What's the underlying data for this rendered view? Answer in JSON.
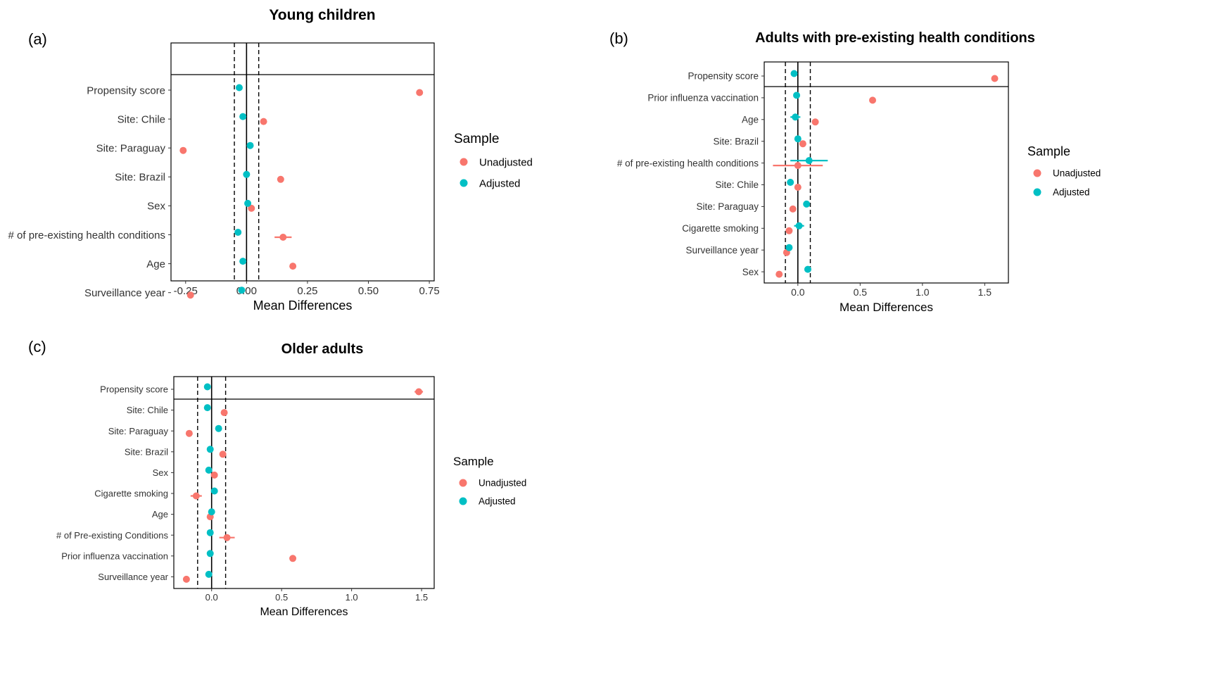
{
  "colors": {
    "unadjusted": "#F8766D",
    "adjusted": "#00BFC4",
    "axis": "#000000",
    "text": "#333333"
  },
  "legend_title": "Sample",
  "legend_labels": {
    "unadjusted": "Unadjusted",
    "adjusted": "Adjusted"
  },
  "chart_data": [
    {
      "type": "scatter",
      "panel_label": "(a)",
      "title": "Young children",
      "xlabel": "Mean Differences",
      "ylabel": "",
      "xlim": [
        -0.31,
        0.77
      ],
      "xticks": [
        -0.25,
        0.0,
        0.25,
        0.5,
        0.75
      ],
      "xtick_labels": [
        "-0.25",
        "0.00",
        "0.25",
        "0.50",
        "0.75"
      ],
      "reference_lines": {
        "solid": 0,
        "dashed": [
          -0.05,
          0.05
        ]
      },
      "legend_placement": "right",
      "categories": [
        "Propensity score",
        "Site: Chile",
        "Site: Paraguay",
        "Site: Brazil",
        "Sex",
        "# of pre-existing health conditions",
        "Age",
        "Surveillance year"
      ],
      "series": [
        {
          "name": "Unadjusted",
          "values": [
            0.71,
            0.07,
            -0.26,
            0.14,
            0.02,
            0.15,
            0.19,
            -0.23
          ],
          "errors": [
            0,
            0,
            0,
            0,
            0,
            0.035,
            0,
            0
          ]
        },
        {
          "name": "Adjusted",
          "values": [
            -0.03,
            -0.015,
            0.015,
            0.0,
            0.005,
            -0.035,
            -0.015,
            -0.02
          ],
          "errors": [
            0,
            0,
            0,
            0,
            0,
            0,
            0,
            0
          ]
        }
      ]
    },
    {
      "type": "scatter",
      "panel_label": "(b)",
      "title": "Adults with pre-existing health conditions",
      "xlabel": "Mean Differences",
      "ylabel": "",
      "xlim": [
        -0.27,
        1.69
      ],
      "xticks": [
        0.0,
        0.5,
        1.0,
        1.5
      ],
      "xtick_labels": [
        "0.0",
        "0.5",
        "1.0",
        "1.5"
      ],
      "reference_lines": {
        "solid": 0,
        "dashed": [
          -0.1,
          0.1
        ]
      },
      "legend_placement": "right",
      "categories": [
        "Propensity score",
        "Prior influenza vaccination",
        "Age",
        "Site: Brazil",
        "# of pre-existing health conditions",
        "Site: Chile",
        "Site: Paraguay",
        "Cigarette smoking",
        "Surveillance year",
        "Sex"
      ],
      "series": [
        {
          "name": "Unadjusted",
          "values": [
            1.58,
            0.6,
            0.14,
            0.04,
            0.0,
            0.0,
            -0.04,
            -0.07,
            -0.09,
            -0.15
          ],
          "errors": [
            0,
            0,
            0,
            0,
            0.2,
            0,
            0,
            0,
            0,
            0
          ]
        },
        {
          "name": "Adjusted",
          "values": [
            -0.03,
            -0.01,
            -0.02,
            0.0,
            0.09,
            -0.06,
            0.07,
            0.01,
            -0.07,
            0.08
          ],
          "errors": [
            0,
            0,
            0.04,
            0,
            0.15,
            0,
            0,
            0.04,
            0,
            0
          ]
        }
      ]
    },
    {
      "type": "scatter",
      "panel_label": "(c)",
      "title": "Older adults",
      "xlabel": "Mean Differences",
      "ylabel": "",
      "xlim": [
        -0.27,
        1.59
      ],
      "xticks": [
        0.0,
        0.5,
        1.0,
        1.5
      ],
      "xtick_labels": [
        "0.0",
        "0.5",
        "1.0",
        "1.5"
      ],
      "reference_lines": {
        "solid": 0,
        "dashed": [
          -0.1,
          0.1
        ]
      },
      "legend_placement": "right",
      "categories": [
        "Propensity score",
        "Site: Chile",
        "Site: Paraguay",
        "Site: Brazil",
        "Sex",
        "Cigarette smoking",
        "Age",
        "# of Pre-existing Conditions",
        "Prior influenza vaccination",
        "Surveillance year"
      ],
      "series": [
        {
          "name": "Unadjusted",
          "values": [
            1.48,
            0.09,
            -0.16,
            0.08,
            0.02,
            -0.11,
            -0.01,
            0.11,
            0.58,
            -0.18
          ],
          "errors": [
            0.03,
            0,
            0,
            0,
            0,
            0.04,
            0,
            0.055,
            0,
            0
          ]
        },
        {
          "name": "Adjusted",
          "values": [
            -0.03,
            -0.03,
            0.05,
            -0.01,
            -0.02,
            0.02,
            0.0,
            -0.01,
            -0.01,
            -0.02
          ],
          "errors": [
            0,
            0,
            0,
            0,
            0,
            0,
            0,
            0,
            0,
            0
          ]
        }
      ]
    }
  ]
}
